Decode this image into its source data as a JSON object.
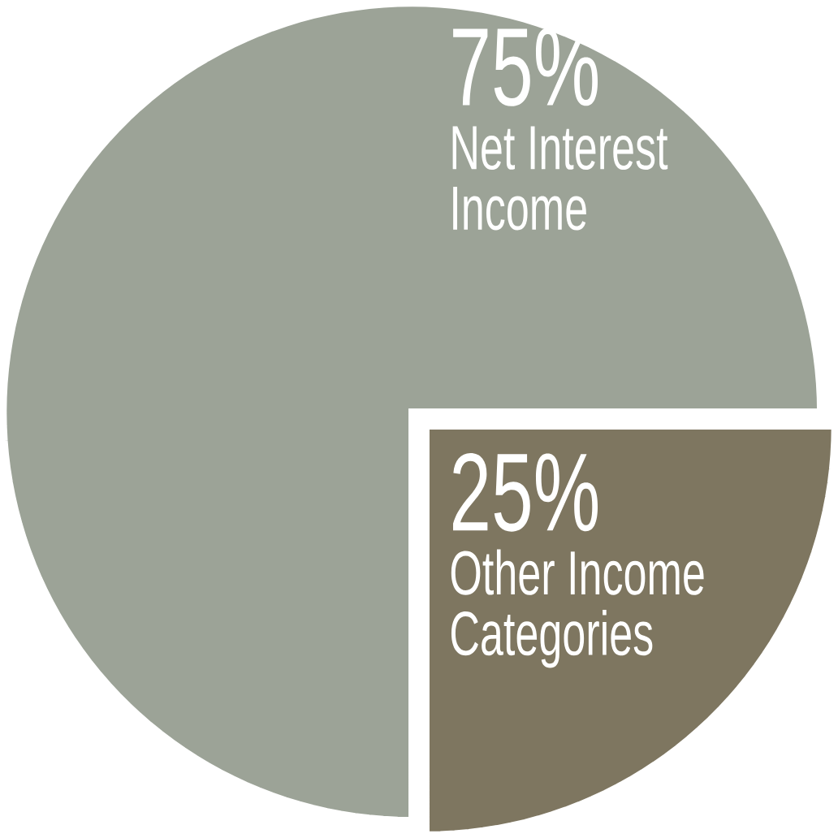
{
  "chart_data": {
    "type": "pie",
    "categories": [
      "Net Interest Income",
      "Other Income Categories"
    ],
    "values": [
      75,
      25
    ],
    "colors": [
      "#9ca397",
      "#7e7660"
    ],
    "value_labels": [
      "75%",
      "25%"
    ]
  }
}
